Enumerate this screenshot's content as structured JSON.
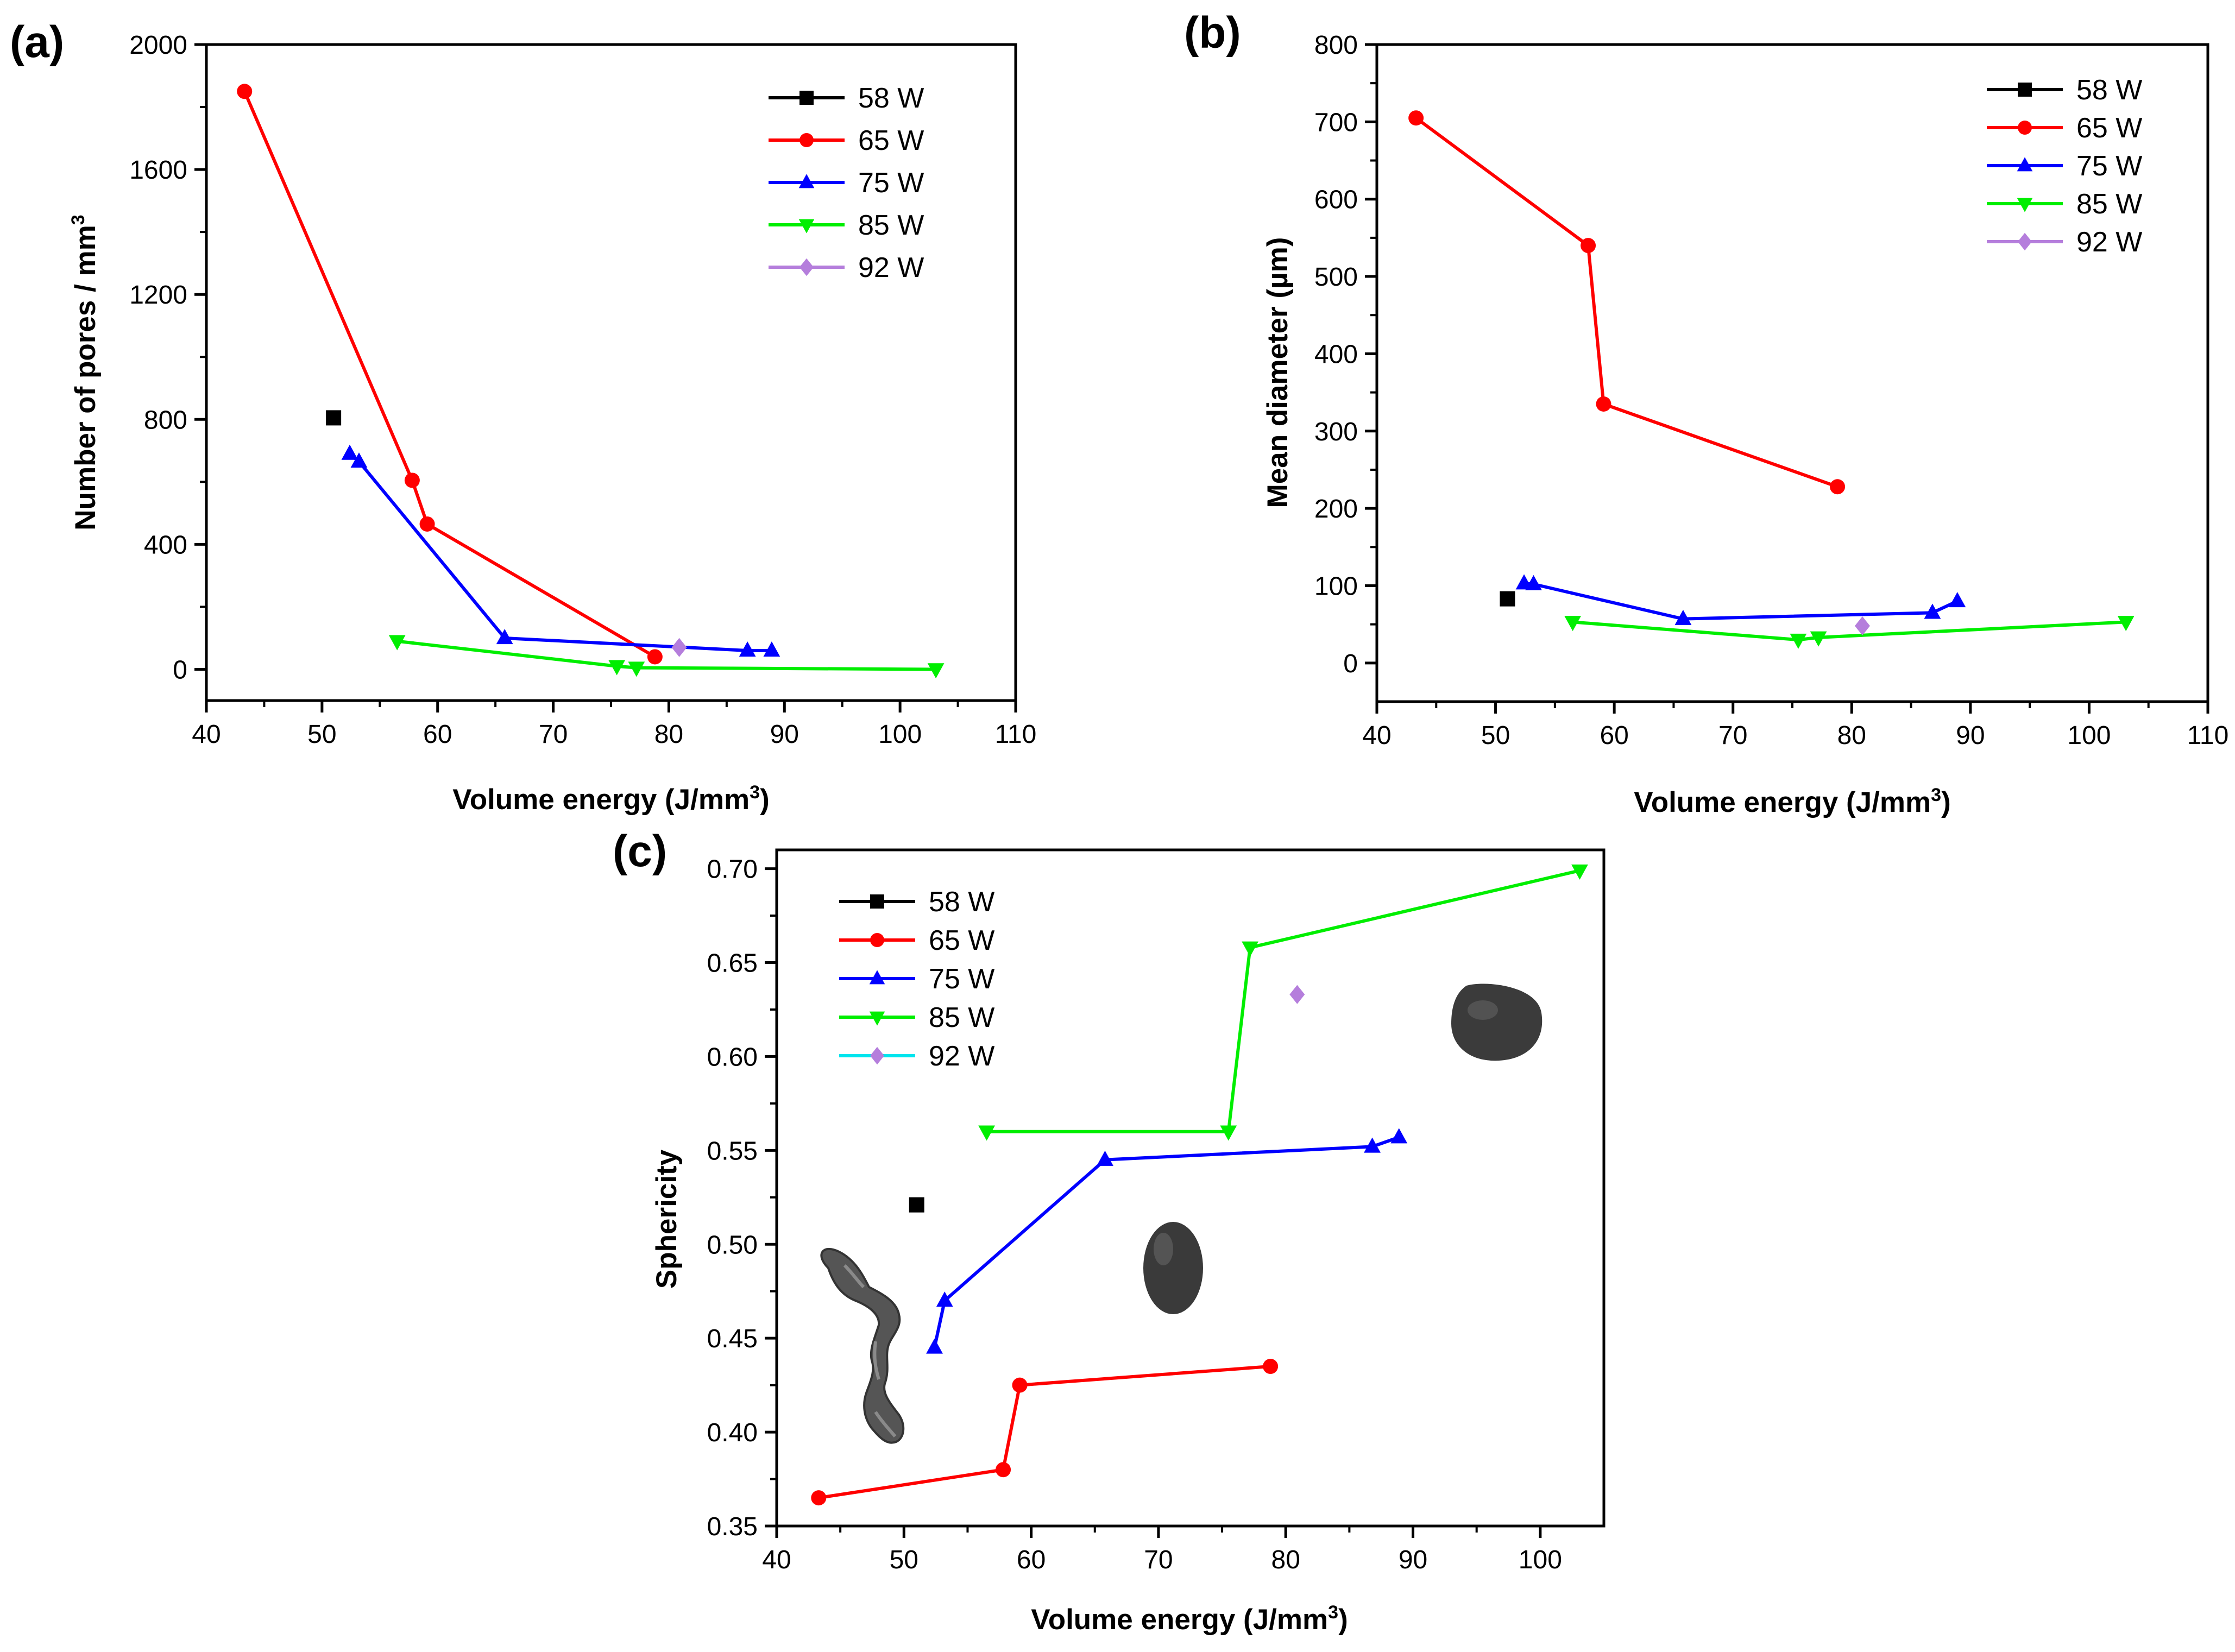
{
  "figure": {
    "panels": [
      {
        "letter": "(a)",
        "chart_index": 0
      },
      {
        "letter": "(b)",
        "chart_index": 1
      },
      {
        "letter": "(c)",
        "chart_index": 2
      }
    ]
  },
  "series_styles": [
    {
      "name": "58 W",
      "color": "#000000",
      "marker": "square"
    },
    {
      "name": "65 W",
      "color": "#ff0000",
      "marker": "circle"
    },
    {
      "name": "75 W",
      "color": "#0000ff",
      "marker": "triangle-up"
    },
    {
      "name": "85 W",
      "color": "#00ee00",
      "marker": "triangle-down"
    },
    {
      "name": "92 W",
      "color": "#b57edc",
      "marker": "diamond"
    }
  ],
  "chart_data": [
    {
      "type": "line",
      "panel": "(a)",
      "xlabel": "Volume energy (J/mm",
      "xlabel_sup": "3",
      "xlabel_end": ")",
      "ylabel": "Number of pores / mm",
      "ylabel_sup": "3",
      "xlim": [
        40,
        110
      ],
      "ylim": [
        -100,
        2000
      ],
      "xticks": [
        40,
        50,
        60,
        70,
        80,
        90,
        100,
        110
      ],
      "yticks": [
        0,
        400,
        800,
        1200,
        1600,
        2000
      ],
      "legend": "top-right",
      "series": [
        {
          "name": "58 W",
          "x": [
            51
          ],
          "y": [
            805
          ]
        },
        {
          "name": "65 W",
          "x": [
            43.3,
            57.8,
            59.1,
            78.8
          ],
          "y": [
            1850,
            605,
            465,
            40
          ]
        },
        {
          "name": "75 W",
          "x": [
            52.4,
            53.2,
            65.8,
            86.8,
            88.9
          ],
          "y": [
            690,
            665,
            100,
            60,
            60
          ]
        },
        {
          "name": "85 W",
          "x": [
            56.5,
            75.5,
            77.2,
            103.1
          ],
          "y": [
            90,
            10,
            5,
            0
          ]
        },
        {
          "name": "92 W",
          "x": [
            80.9
          ],
          "y": [
            70
          ]
        }
      ]
    },
    {
      "type": "line",
      "panel": "(b)",
      "xlabel": "Volume energy (J/mm",
      "xlabel_sup": "3",
      "xlabel_end": ")",
      "ylabel": "Mean diameter (µm)",
      "xlim": [
        40,
        110
      ],
      "ylim": [
        -50,
        800
      ],
      "xticks": [
        40,
        50,
        60,
        70,
        80,
        90,
        100,
        110
      ],
      "yticks": [
        0,
        100,
        200,
        300,
        400,
        500,
        600,
        700,
        800
      ],
      "legend": "top-right",
      "series": [
        {
          "name": "58 W",
          "x": [
            51
          ],
          "y": [
            83
          ]
        },
        {
          "name": "65 W",
          "x": [
            43.3,
            57.8,
            59.1,
            78.8
          ],
          "y": [
            705,
            540,
            335,
            228
          ]
        },
        {
          "name": "75 W",
          "x": [
            52.4,
            53.2,
            65.8,
            86.8,
            88.9
          ],
          "y": [
            103,
            102,
            57,
            65,
            80
          ]
        },
        {
          "name": "85 W",
          "x": [
            56.5,
            75.5,
            77.2,
            103.1
          ],
          "y": [
            53,
            30,
            33,
            53
          ]
        },
        {
          "name": "92 W",
          "x": [
            80.9
          ],
          "y": [
            48
          ]
        }
      ]
    },
    {
      "type": "line",
      "panel": "(c)",
      "xlabel": "Volume energy (J/mm",
      "xlabel_sup": "3",
      "xlabel_end": ")",
      "ylabel": "Sphericity",
      "xlim": [
        40,
        105
      ],
      "ylim": [
        0.35,
        0.71
      ],
      "xticks": [
        40,
        50,
        60,
        70,
        80,
        90,
        100
      ],
      "yticks": [
        0.35,
        0.4,
        0.45,
        0.5,
        0.55,
        0.6,
        0.65,
        0.7
      ],
      "ytick_labels": [
        "0.35",
        "0.40",
        "0.45",
        "0.50",
        "0.55",
        "0.60",
        "0.65",
        "0.70"
      ],
      "legend": "top-left",
      "legend_line_colors": [
        "#000000",
        "#ff0000",
        "#0000ff",
        "#00ee00",
        "#00e5ee"
      ],
      "series": [
        {
          "name": "58 W",
          "x": [
            51
          ],
          "y": [
            0.521
          ]
        },
        {
          "name": "65 W",
          "x": [
            43.3,
            57.8,
            59.1,
            78.8
          ],
          "y": [
            0.365,
            0.38,
            0.425,
            0.435
          ]
        },
        {
          "name": "75 W",
          "x": [
            52.4,
            53.2,
            65.8,
            86.8,
            88.9
          ],
          "y": [
            0.445,
            0.47,
            0.545,
            0.552,
            0.557
          ]
        },
        {
          "name": "85 W",
          "x": [
            56.5,
            75.5,
            77.2,
            103.1
          ],
          "y": [
            0.56,
            0.56,
            0.658,
            0.699
          ]
        },
        {
          "name": "92 W",
          "x": [
            80.9
          ],
          "y": [
            0.633
          ]
        }
      ],
      "pore_images": [
        "irregular-pore",
        "elongated-pore",
        "spherical-pore"
      ]
    }
  ]
}
